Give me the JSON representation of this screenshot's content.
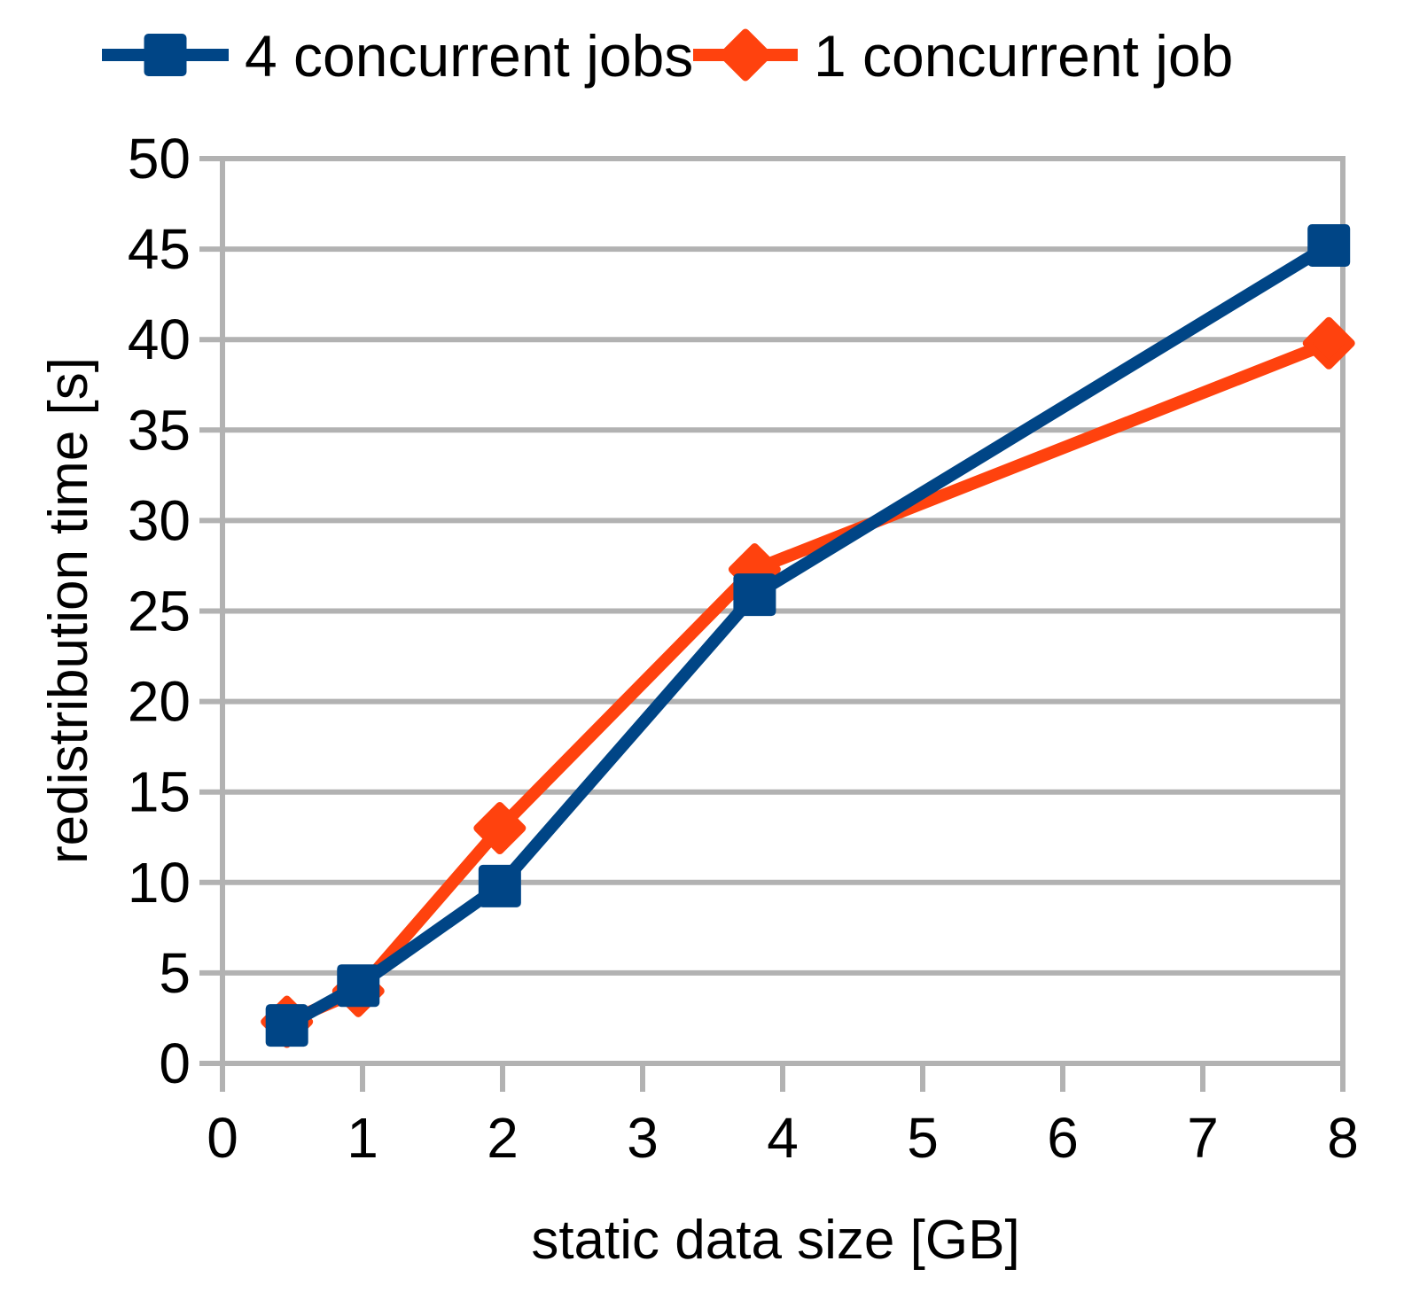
{
  "chart_data": {
    "type": "line",
    "title": "",
    "xlabel": "static data size [GB]",
    "ylabel": "redistribution time [s]",
    "xlim": [
      0,
      8
    ],
    "ylim": [
      0,
      50
    ],
    "x_ticks": [
      0,
      1,
      2,
      3,
      4,
      5,
      6,
      7,
      8
    ],
    "y_ticks": [
      0,
      5,
      10,
      15,
      20,
      25,
      30,
      35,
      40,
      45,
      50
    ],
    "grid": "horizontal",
    "legend_position": "top",
    "x": [
      0.46,
      0.97,
      1.98,
      3.8,
      7.9
    ],
    "series": [
      {
        "name": "4 concurrent jobs",
        "color": "#004586",
        "marker": "square",
        "y": [
          2.1,
          4.3,
          9.8,
          25.9,
          45.2
        ]
      },
      {
        "name": "1 concurrent job",
        "color": "#ff420e",
        "marker": "diamond",
        "y": [
          2.3,
          4.0,
          13.0,
          27.3,
          39.8
        ]
      }
    ],
    "gridline_color": "#b2b2b2",
    "text_color": "#000000",
    "background_color": "#ffffff"
  }
}
